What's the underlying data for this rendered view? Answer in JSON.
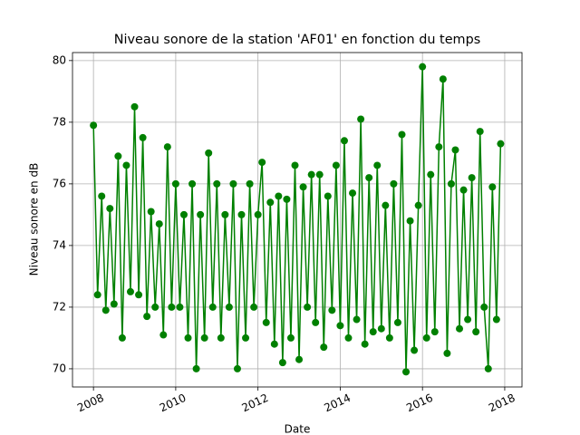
{
  "chart_data": {
    "type": "line",
    "title": "Niveau sonore de la station 'AF01' en fonction du temps",
    "xlabel": "Date",
    "ylabel": "Niveau sonore en dB",
    "color": "#008000",
    "grid": true,
    "xlim": [
      2007.49,
      2018.42
    ],
    "ylim": [
      69.41,
      80.26
    ],
    "xticks": [
      2008,
      2010,
      2012,
      2014,
      2016,
      2018
    ],
    "yticks": [
      70,
      72,
      74,
      76,
      78,
      80
    ],
    "x": [
      2008.0,
      2008.1,
      2008.2,
      2008.3,
      2008.4,
      2008.5,
      2008.6,
      2008.7,
      2008.8,
      2008.9,
      2009.0,
      2009.1,
      2009.2,
      2009.3,
      2009.4,
      2009.5,
      2009.6,
      2009.7,
      2009.8,
      2009.9,
      2010.0,
      2010.1,
      2010.2,
      2010.3,
      2010.4,
      2010.5,
      2010.6,
      2010.7,
      2010.8,
      2010.9,
      2011.0,
      2011.1,
      2011.2,
      2011.3,
      2011.4,
      2011.5,
      2011.6,
      2011.7,
      2011.8,
      2011.9,
      2012.0,
      2012.1,
      2012.2,
      2012.3,
      2012.4,
      2012.5,
      2012.6,
      2012.7,
      2012.8,
      2012.9,
      2013.0,
      2013.1,
      2013.2,
      2013.3,
      2013.4,
      2013.5,
      2013.6,
      2013.7,
      2013.8,
      2013.9,
      2014.0,
      2014.1,
      2014.2,
      2014.3,
      2014.4,
      2014.5,
      2014.6,
      2014.7,
      2014.8,
      2014.9,
      2015.0,
      2015.1,
      2015.2,
      2015.3,
      2015.4,
      2015.5,
      2015.6,
      2015.7,
      2015.8,
      2015.9,
      2016.0,
      2016.1,
      2016.2,
      2016.3,
      2016.4,
      2016.5,
      2016.6,
      2016.7,
      2016.8,
      2016.9,
      2017.0,
      2017.1,
      2017.2,
      2017.3,
      2017.4,
      2017.5,
      2017.6,
      2017.7,
      2017.8,
      2017.9
    ],
    "values": [
      77.9,
      72.4,
      75.6,
      71.9,
      75.2,
      72.1,
      76.9,
      71.0,
      76.6,
      72.5,
      78.5,
      72.4,
      77.5,
      71.7,
      75.1,
      72.0,
      74.7,
      71.1,
      77.2,
      72.0,
      76.0,
      72.0,
      75.0,
      71.0,
      76.0,
      70.0,
      75.0,
      71.0,
      77.0,
      72.0,
      76.0,
      71.0,
      75.0,
      72.0,
      76.0,
      70.0,
      75.0,
      71.0,
      76.0,
      72.0,
      75.0,
      76.7,
      71.5,
      75.4,
      70.8,
      75.6,
      70.2,
      75.5,
      71.0,
      76.6,
      70.3,
      75.9,
      72.0,
      76.3,
      71.5,
      76.3,
      70.7,
      75.6,
      71.9,
      76.6,
      71.4,
      77.4,
      71.0,
      75.7,
      71.6,
      78.1,
      70.8,
      76.2,
      71.2,
      76.6,
      71.3,
      75.3,
      71.0,
      76.0,
      71.5,
      77.6,
      69.9,
      74.8,
      70.6,
      75.3,
      79.8,
      71.0,
      76.3,
      71.2,
      77.2,
      79.4,
      70.5,
      76.0,
      77.1,
      71.3,
      75.8,
      71.6,
      76.2,
      71.2,
      77.7,
      72.0,
      70.0,
      75.9,
      71.6,
      77.3
    ]
  }
}
